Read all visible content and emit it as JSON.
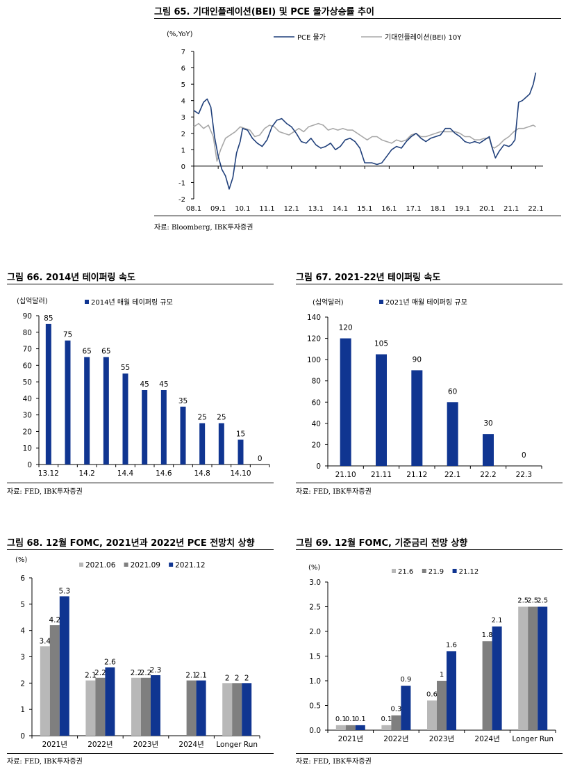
{
  "charts": [
    {
      "title": "그림 65. 기대인플레이션(BEI) 및 PCE 물가상승률 추이",
      "source": "자료: Bloomberg, IBK투자증권",
      "chart_data": {
        "type": "line",
        "ylabel": "(%,YoY)",
        "ylim": [
          -2,
          7
        ],
        "yticks": [
          "-2",
          "-1",
          "0",
          "1",
          "2",
          "3",
          "4",
          "5",
          "6",
          "7"
        ],
        "xticks": [
          "08.1",
          "09.1",
          "10.1",
          "11.1",
          "12.1",
          "13.1",
          "14.1",
          "15.1",
          "16.1",
          "17.1",
          "18.1",
          "19.1",
          "20.1",
          "21.1",
          "22.1"
        ],
        "x_start_year": 2008,
        "x_end_year": 2022.3,
        "legend_position": "top",
        "series": [
          {
            "name": "PCE 물가",
            "color": "#1f3f7a",
            "x": [
              2008.0,
              2008.2,
              2008.4,
              2008.55,
              2008.7,
              2008.85,
              2009.0,
              2009.15,
              2009.3,
              2009.45,
              2009.6,
              2009.75,
              2009.9,
              2010.0,
              2010.2,
              2010.4,
              2010.6,
              2010.8,
              2011.0,
              2011.2,
              2011.4,
              2011.6,
              2011.8,
              2012.0,
              2012.2,
              2012.4,
              2012.6,
              2012.8,
              2013.0,
              2013.2,
              2013.4,
              2013.6,
              2013.8,
              2014.0,
              2014.2,
              2014.4,
              2014.6,
              2014.8,
              2015.0,
              2015.1,
              2015.3,
              2015.5,
              2015.7,
              2015.9,
              2016.1,
              2016.3,
              2016.5,
              2016.7,
              2016.9,
              2017.1,
              2017.3,
              2017.5,
              2017.7,
              2017.9,
              2018.1,
              2018.3,
              2018.5,
              2018.7,
              2018.9,
              2019.1,
              2019.3,
              2019.5,
              2019.7,
              2019.9,
              2020.1,
              2020.2,
              2020.35,
              2020.5,
              2020.7,
              2020.9,
              2021.0,
              2021.15,
              2021.3,
              2021.45,
              2021.6,
              2021.75,
              2021.9,
              2022.0
            ],
            "y": [
              3.4,
              3.2,
              3.9,
              4.1,
              3.6,
              1.8,
              0.6,
              -0.2,
              -0.6,
              -1.4,
              -0.7,
              0.8,
              1.5,
              2.3,
              2.2,
              1.7,
              1.4,
              1.2,
              1.6,
              2.4,
              2.8,
              2.9,
              2.6,
              2.4,
              2.0,
              1.5,
              1.4,
              1.7,
              1.3,
              1.1,
              1.2,
              1.4,
              1.0,
              1.2,
              1.6,
              1.7,
              1.5,
              1.1,
              0.2,
              0.2,
              0.2,
              0.1,
              0.2,
              0.6,
              1.0,
              1.2,
              1.1,
              1.5,
              1.8,
              2.0,
              1.7,
              1.5,
              1.7,
              1.8,
              1.9,
              2.3,
              2.3,
              2.0,
              1.8,
              1.5,
              1.4,
              1.5,
              1.4,
              1.6,
              1.8,
              1.2,
              0.5,
              0.9,
              1.3,
              1.2,
              1.3,
              1.6,
              3.9,
              4.0,
              4.2,
              4.4,
              5.0,
              5.7
            ]
          },
          {
            "name": "기대인플레이션(BEI) 10Y",
            "color": "#a8a8a8",
            "x": [
              2008.0,
              2008.2,
              2008.4,
              2008.6,
              2008.8,
              2008.95,
              2009.1,
              2009.3,
              2009.5,
              2009.7,
              2009.9,
              2010.1,
              2010.3,
              2010.5,
              2010.7,
              2010.9,
              2011.1,
              2011.3,
              2011.5,
              2011.7,
              2011.9,
              2012.1,
              2012.3,
              2012.5,
              2012.7,
              2012.9,
              2013.1,
              2013.3,
              2013.5,
              2013.7,
              2013.9,
              2014.1,
              2014.3,
              2014.5,
              2014.7,
              2014.9,
              2015.1,
              2015.3,
              2015.5,
              2015.7,
              2015.9,
              2016.1,
              2016.3,
              2016.5,
              2016.7,
              2016.9,
              2017.1,
              2017.3,
              2017.5,
              2017.7,
              2017.9,
              2018.1,
              2018.3,
              2018.5,
              2018.7,
              2018.9,
              2019.1,
              2019.3,
              2019.5,
              2019.7,
              2019.9,
              2020.1,
              2020.2,
              2020.3,
              2020.5,
              2020.7,
              2020.9,
              2021.1,
              2021.3,
              2021.5,
              2021.7,
              2021.9,
              2022.0
            ],
            "y": [
              2.4,
              2.6,
              2.3,
              2.5,
              1.8,
              0.3,
              1.0,
              1.7,
              1.9,
              2.1,
              2.4,
              2.3,
              2.2,
              1.8,
              1.9,
              2.3,
              2.5,
              2.4,
              2.1,
              2.0,
              1.9,
              2.1,
              2.3,
              2.1,
              2.4,
              2.5,
              2.6,
              2.5,
              2.2,
              2.3,
              2.2,
              2.3,
              2.2,
              2.2,
              2.0,
              1.8,
              1.6,
              1.8,
              1.8,
              1.6,
              1.5,
              1.4,
              1.6,
              1.5,
              1.6,
              1.9,
              2.0,
              1.8,
              1.8,
              1.9,
              2.0,
              2.1,
              2.1,
              2.1,
              2.1,
              2.0,
              1.8,
              1.8,
              1.6,
              1.6,
              1.7,
              1.7,
              1.2,
              1.1,
              1.3,
              1.6,
              1.8,
              2.1,
              2.3,
              2.3,
              2.4,
              2.5,
              2.4
            ]
          }
        ]
      }
    },
    {
      "title": "그림 66. 2014년 테이퍼링 속도",
      "source": "자료: FED, IBK투자증권",
      "chart_data": {
        "type": "bar",
        "ylabel": "(십억달러)",
        "legend_position": "top",
        "ylim": [
          0,
          90
        ],
        "yticks": [
          "0",
          "10",
          "20",
          "30",
          "40",
          "50",
          "60",
          "70",
          "80",
          "90"
        ],
        "categories": [
          "13.12",
          "14.1",
          "14.2",
          "14.3",
          "14.4",
          "14.5",
          "14.6",
          "14.7",
          "14.8",
          "14.9",
          "14.10",
          "14.11"
        ],
        "xtick_labels": [
          "13.12",
          "",
          "14.2",
          "",
          "14.4",
          "",
          "14.6",
          "",
          "14.8",
          "",
          "14.10",
          ""
        ],
        "series": [
          {
            "name": "2014년 매월 테이퍼링 규모",
            "color": "#103591",
            "values": [
              85,
              75,
              65,
              65,
              55,
              45,
              45,
              35,
              25,
              25,
              15,
              0
            ]
          }
        ]
      }
    },
    {
      "title": "그림 67. 2021-22년 테이퍼링 속도",
      "source": "자료: FED, IBK투자증권",
      "chart_data": {
        "type": "bar",
        "ylabel": "(십억달러)",
        "legend_position": "top",
        "ylim": [
          0,
          140
        ],
        "yticks": [
          "0",
          "20",
          "40",
          "60",
          "80",
          "100",
          "120",
          "140"
        ],
        "categories": [
          "21.10",
          "21.11",
          "21.12",
          "22.1",
          "22.2",
          "22.3"
        ],
        "xtick_labels": [
          "21.10",
          "21.11",
          "21.12",
          "22.1",
          "22.2",
          "22.3"
        ],
        "series": [
          {
            "name": "2021년 매월 테이퍼링 규모",
            "color": "#103591",
            "values": [
              120,
              105,
              90,
              60,
              30,
              0
            ]
          }
        ]
      }
    },
    {
      "title": "그림 68. 12월 FOMC, 2021년과 2022년 PCE 전망치 상향",
      "source": "자료: FED, IBK투자증권",
      "chart_data": {
        "type": "bar",
        "ylabel": "(%)",
        "legend_position": "top",
        "ylim": [
          0,
          6
        ],
        "yticks": [
          "0",
          "1",
          "2",
          "3",
          "4",
          "5",
          "6"
        ],
        "categories": [
          "2021년",
          "2022년",
          "2023년",
          "2024년",
          "Longer Run"
        ],
        "series": [
          {
            "name": "2021.06",
            "color": "#b8b8b8",
            "values": [
              3.4,
              2.1,
              2.2,
              null,
              2
            ],
            "labels": [
              "3.4",
              "2.1",
              "2.2",
              "",
              "2"
            ]
          },
          {
            "name": "2021.09",
            "color": "#7f7f7f",
            "values": [
              4.2,
              2.2,
              2.2,
              2.1,
              2
            ],
            "labels": [
              "4.2",
              "2.2",
              "2.2",
              "2.1",
              "2"
            ]
          },
          {
            "name": "2021.12",
            "color": "#103591",
            "values": [
              5.3,
              2.6,
              2.3,
              2.1,
              2
            ],
            "labels": [
              "5.3",
              "2.6",
              "2.3",
              "2.1",
              "2"
            ]
          }
        ]
      }
    },
    {
      "title": "그림 69. 12월 FOMC, 기준금리 전망 상향",
      "source": "자료: FED, IBK투자증권",
      "chart_data": {
        "type": "bar",
        "ylabel": "(%)",
        "legend_position": "top",
        "ylim": [
          0,
          3
        ],
        "yticks": [
          "0.0",
          "0.5",
          "1.0",
          "1.5",
          "2.0",
          "2.5",
          "3.0"
        ],
        "categories": [
          "2021년",
          "2022년",
          "2023년",
          "2024년",
          "Longer Run"
        ],
        "series": [
          {
            "name": "21.6",
            "color": "#b8b8b8",
            "values": [
              0.1,
              0.1,
              0.6,
              null,
              2.5
            ],
            "labels": [
              "0.1",
              "0.1",
              "0.6",
              "",
              "2.5"
            ]
          },
          {
            "name": "21.9",
            "color": "#7f7f7f",
            "values": [
              0.1,
              0.3,
              1.0,
              1.8,
              2.5
            ],
            "labels": [
              "0.1",
              "0.3",
              "1",
              "1.8",
              "2.5"
            ]
          },
          {
            "name": "21.12",
            "color": "#103591",
            "values": [
              0.1,
              0.9,
              1.6,
              2.1,
              2.5
            ],
            "labels": [
              "0.1",
              "0.9",
              "1.6",
              "2.1",
              "2.5"
            ]
          }
        ]
      }
    }
  ]
}
